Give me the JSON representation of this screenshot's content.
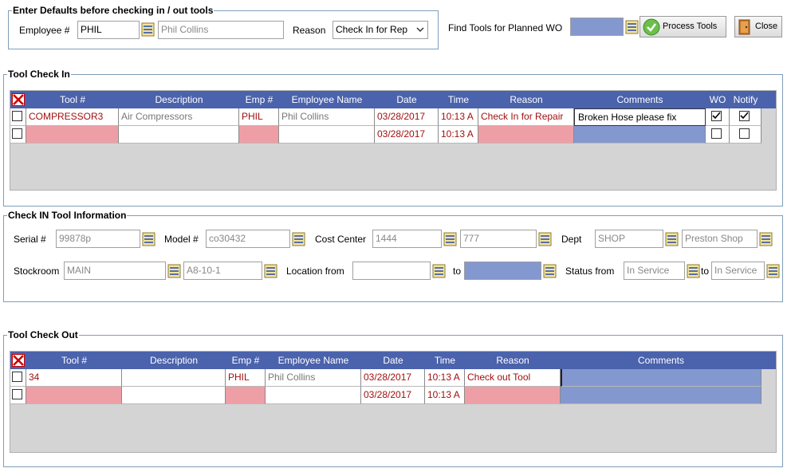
{
  "defaults": {
    "legend": "Enter Defaults before checking in / out tools",
    "employee_label": "Employee #",
    "employee_value": "PHIL",
    "employee_name": "Phil Collins",
    "reason_label": "Reason",
    "reason_value": "Check In for Rep"
  },
  "toolbar": {
    "find_label": "Find Tools for Planned WO",
    "find_value": "",
    "process_label": "Process Tools",
    "close_label": "Close"
  },
  "checkin": {
    "legend": "Tool Check In",
    "columns": [
      "Tool #",
      "Description",
      "Emp #",
      "Employee Name",
      "Date",
      "Time",
      "Reason",
      "Comments",
      "WO",
      "Notify"
    ],
    "rows": [
      {
        "tool": "COMPRESSOR3",
        "description": "Air Compressors",
        "emp": "PHIL",
        "name": "Phil Collins",
        "date": "03/28/2017",
        "time": "10:13 A",
        "reason": "Check In for Repair",
        "comments": "Broken Hose please fix",
        "wo": true,
        "notify": true
      },
      {
        "tool": "",
        "description": "",
        "emp": "",
        "name": "",
        "date": "03/28/2017",
        "time": "10:13 A",
        "reason": "",
        "comments": "",
        "wo": false,
        "notify": false
      }
    ]
  },
  "info": {
    "legend": "Check IN Tool Information",
    "serial_label": "Serial #",
    "serial_value": "99878p",
    "model_label": "Model #",
    "model_value": "co30432",
    "cost_label": "Cost Center",
    "cost_value1": "1444",
    "cost_value2": "777",
    "dept_label": "Dept",
    "dept_value1": "SHOP",
    "dept_value2": "Preston Shop",
    "stock_label": "Stockroom",
    "stock_value1": "MAIN",
    "stock_value2": "A8-10-1",
    "loc_label": "Location from",
    "loc_from": "",
    "loc_to_label": "to",
    "loc_to": "",
    "status_label": "Status from",
    "status_from": "In Service",
    "status_to_label": "to",
    "status_to": "In Service"
  },
  "checkout": {
    "legend": "Tool Check Out",
    "columns": [
      "Tool #",
      "Description",
      "Emp #",
      "Employee Name",
      "Date",
      "Time",
      "Reason",
      "Comments"
    ],
    "rows": [
      {
        "tool": "34",
        "description": "",
        "emp": "PHIL",
        "name": "Phil Collins",
        "date": "03/28/2017",
        "time": "10:13 A",
        "reason": "Check out Tool",
        "comments": ""
      },
      {
        "tool": "",
        "description": "",
        "emp": "",
        "name": "",
        "date": "03/28/2017",
        "time": "10:13 A",
        "reason": "",
        "comments": ""
      }
    ]
  },
  "colors": {
    "header": "#4b62ac",
    "pink": "#ee9fa6",
    "blue": "#8498d0",
    "red_text": "#a01010"
  },
  "icons": [
    "lookup-icon",
    "check-icon",
    "close-door-icon",
    "select-all-x-icon",
    "checkbox-checked-icon"
  ]
}
